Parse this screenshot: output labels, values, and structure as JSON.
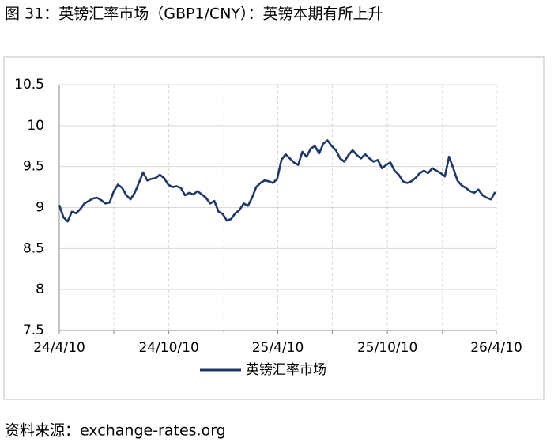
{
  "chart_data": {
    "type": "line",
    "title": "图 31：英镑汇率市场（GBP1/CNY）：英镑本期有所上升",
    "source": "资料来源：exchange-rates.org",
    "x": [
      "24/4/10",
      "24/4/17",
      "24/4/24",
      "24/5/1",
      "24/5/8",
      "24/5/15",
      "24/5/22",
      "24/5/29",
      "24/6/5",
      "24/6/12",
      "24/6/19",
      "24/6/26",
      "24/7/3",
      "24/7/10",
      "24/7/17",
      "24/7/24",
      "24/7/31",
      "24/8/7",
      "24/8/14",
      "24/8/21",
      "24/8/28",
      "24/9/4",
      "24/9/11",
      "24/9/18",
      "24/9/25",
      "24/10/2",
      "24/10/9",
      "24/10/16",
      "24/10/23",
      "24/10/30",
      "24/11/6",
      "24/11/13",
      "24/11/20",
      "24/11/27",
      "24/12/4",
      "24/12/11",
      "24/12/18",
      "24/12/25",
      "25/1/1",
      "25/1/8",
      "25/1/15",
      "25/1/22",
      "25/1/29",
      "25/2/5",
      "25/2/12",
      "25/2/19",
      "25/2/26",
      "25/3/5",
      "25/3/12",
      "25/3/19",
      "25/3/26",
      "25/4/2",
      "25/4/9",
      "25/4/16",
      "25/4/23",
      "25/4/30",
      "25/5/7",
      "25/5/14",
      "25/5/21",
      "25/5/28",
      "25/6/4",
      "25/6/11",
      "25/6/18",
      "25/6/25",
      "25/7/2",
      "25/7/9",
      "25/7/16",
      "25/7/23",
      "25/7/30",
      "25/8/6",
      "25/8/13",
      "25/8/20",
      "25/8/27",
      "25/9/3",
      "25/9/10",
      "25/9/17",
      "25/9/24",
      "25/10/1",
      "25/10/8",
      "25/10/15",
      "25/10/22",
      "25/10/29",
      "25/11/5",
      "25/11/12",
      "25/11/19",
      "25/11/26",
      "25/12/3",
      "25/12/10",
      "25/12/17",
      "25/12/24",
      "25/12/31",
      "26/1/7",
      "26/1/14",
      "26/1/21",
      "26/1/28",
      "26/2/4",
      "26/2/11",
      "26/2/18",
      "26/2/25",
      "26/3/4",
      "26/3/11",
      "26/3/18",
      "26/3/25",
      "26/4/1",
      "26/4/8"
    ],
    "series": [
      {
        "name": "英镑汇率市场",
        "color": "#1f3864",
        "values": [
          9.03,
          8.88,
          8.83,
          8.95,
          8.93,
          8.98,
          9.05,
          9.08,
          9.11,
          9.12,
          9.09,
          9.05,
          9.06,
          9.2,
          9.28,
          9.24,
          9.15,
          9.1,
          9.18,
          9.3,
          9.43,
          9.33,
          9.35,
          9.36,
          9.4,
          9.36,
          9.28,
          9.25,
          9.26,
          9.24,
          9.15,
          9.18,
          9.16,
          9.2,
          9.16,
          9.12,
          9.05,
          9.08,
          8.95,
          8.92,
          8.84,
          8.86,
          8.93,
          8.97,
          9.05,
          9.02,
          9.12,
          9.25,
          9.3,
          9.33,
          9.32,
          9.3,
          9.35,
          9.58,
          9.65,
          9.6,
          9.55,
          9.52,
          9.68,
          9.62,
          9.72,
          9.75,
          9.66,
          9.78,
          9.82,
          9.75,
          9.7,
          9.6,
          9.56,
          9.64,
          9.7,
          9.64,
          9.6,
          9.65,
          9.6,
          9.56,
          9.58,
          9.48,
          9.52,
          9.55,
          9.45,
          9.4,
          9.32,
          9.3,
          9.32,
          9.36,
          9.42,
          9.45,
          9.42,
          9.48,
          9.45,
          9.42,
          9.38,
          9.62,
          9.48,
          9.33,
          9.27,
          9.24,
          9.2,
          9.18,
          9.22,
          9.15,
          9.12,
          9.1,
          9.19
        ]
      }
    ],
    "xlim": [
      "24/4/10",
      "26/4/10"
    ],
    "xticks": [
      "24/4/10",
      {
        "value": "24/7/10",
        "label": null
      },
      "24/10/10",
      {
        "value": "25/1/10",
        "label": null
      },
      "25/4/10",
      {
        "value": "25/7/10",
        "label": null
      },
      "25/10/10",
      {
        "value": "26/1/10",
        "label": null
      },
      "26/4/10"
    ],
    "ylim": [
      7.5,
      10.5
    ],
    "yticks": [
      7.5,
      8,
      8.5,
      9,
      9.5,
      10,
      10.5
    ],
    "grid": true
  }
}
